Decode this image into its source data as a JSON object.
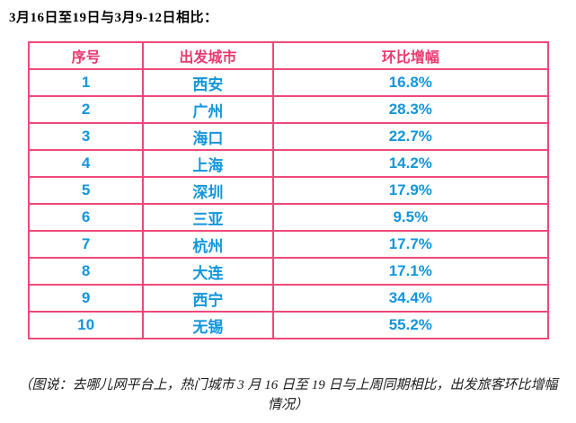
{
  "title": "3月16日至19日与3月9-12日相比：",
  "table": {
    "headers": [
      "序号",
      "出发城市",
      "环比增幅"
    ],
    "rows": [
      [
        "1",
        "西安",
        "16.8%"
      ],
      [
        "2",
        "广州",
        "28.3%"
      ],
      [
        "3",
        "海口",
        "22.7%"
      ],
      [
        "4",
        "上海",
        "14.2%"
      ],
      [
        "5",
        "深圳",
        "17.9%"
      ],
      [
        "6",
        "三亚",
        "9.5%"
      ],
      [
        "7",
        "杭州",
        "17.7%"
      ],
      [
        "8",
        "大连",
        "17.1%"
      ],
      [
        "9",
        "西宁",
        "34.4%"
      ],
      [
        "10",
        "无锡",
        "55.2%"
      ]
    ]
  },
  "caption": "（图说：去哪儿网平台上，热门城市 3 月 16 日至 19 日与上周同期相比，出发旅客环比增幅情况）",
  "colors": {
    "table_border": "#f0487a",
    "header_text": "#e93a6f",
    "cell_text": "#1296db"
  },
  "chart_data": {
    "type": "table",
    "title": "3月16日至19日与3月9-12日相比：",
    "columns": [
      "序号",
      "出发城市",
      "环比增幅"
    ],
    "rows": [
      [
        1,
        "西安",
        "16.8%"
      ],
      [
        2,
        "广州",
        "28.3%"
      ],
      [
        3,
        "海口",
        "22.7%"
      ],
      [
        4,
        "上海",
        "14.2%"
      ],
      [
        5,
        "深圳",
        "17.9%"
      ],
      [
        6,
        "三亚",
        "9.5%"
      ],
      [
        7,
        "杭州",
        "17.7%"
      ],
      [
        8,
        "大连",
        "17.1%"
      ],
      [
        9,
        "西宁",
        "34.4%"
      ],
      [
        10,
        "无锡",
        "55.2%"
      ]
    ],
    "growth_values_pct": [
      16.8,
      28.3,
      22.7,
      14.2,
      17.9,
      9.5,
      17.7,
      17.1,
      34.4,
      55.2
    ]
  }
}
